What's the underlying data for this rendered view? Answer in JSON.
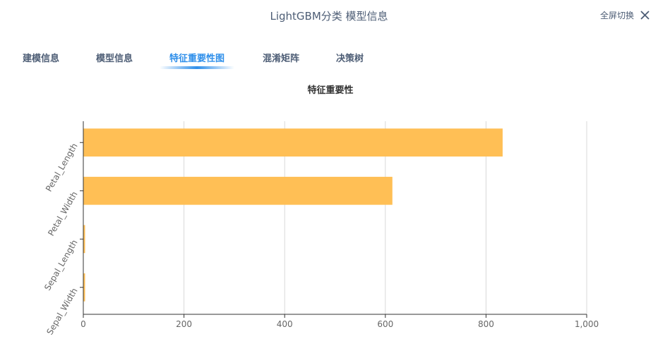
{
  "header": {
    "title": "LightGBM分类 模型信息",
    "fullscreen_label": "全屏切换",
    "close_icon": "close-icon"
  },
  "tabs": [
    {
      "label": "建模信息",
      "active": false
    },
    {
      "label": "模型信息",
      "active": false
    },
    {
      "label": "特征重要性图",
      "active": true
    },
    {
      "label": "混淆矩阵",
      "active": false
    },
    {
      "label": "决策树",
      "active": false
    }
  ],
  "colors": {
    "accent": "#2f8fea",
    "bar": "#ffbf55",
    "text": "#4d5d75"
  },
  "chart_data": {
    "type": "bar",
    "orientation": "horizontal",
    "title": "特征重要性",
    "categories": [
      "Petal_Length",
      "Petal_Width",
      "Sepal_Length",
      "Sepal_Width"
    ],
    "values": [
      833,
      614,
      3,
      3
    ],
    "xlabel": "",
    "ylabel": "",
    "xlim": [
      0,
      1000
    ],
    "x_ticks": [
      "0",
      "200",
      "400",
      "600",
      "800",
      "1,000"
    ],
    "grid": "vertical",
    "legend": "none"
  }
}
